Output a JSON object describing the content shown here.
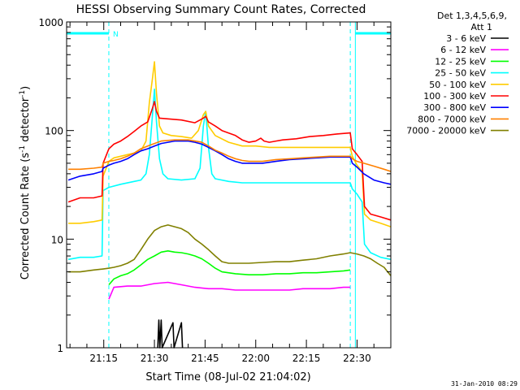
{
  "chart_data": {
    "type": "line",
    "title": "HESSI Observing Summary Count Rates, Corrected",
    "xlabel": "Start Time (08-Jul-02 21:04:02)",
    "ylabel": "Corrected Count Rate (s",
    "ylabel_sup1": "-1",
    "ylabel_mid": " detector",
    "ylabel_sup2": "-1",
    "ylabel_end": ")",
    "y_scale": "log",
    "ylim": [
      1,
      1000
    ],
    "xlim_minutes_after_21_00": [
      4.0,
      48.0
    ],
    "x_ticks": [
      {
        "label": "21:15",
        "m": 15
      },
      {
        "label": "21:30",
        "m": 30
      },
      {
        "label": "21:45",
        "m": 45
      },
      {
        "label": "22:00",
        "m": 60
      },
      {
        "label": "22:15",
        "m": 75
      },
      {
        "label": "22:30",
        "m": 90
      }
    ],
    "y_ticks": [
      {
        "label": "1",
        "v": 1
      },
      {
        "label": "10",
        "v": 10
      },
      {
        "label": "100",
        "v": 100
      },
      {
        "label": "1000",
        "v": 1000
      }
    ],
    "legend_placement": "right",
    "legend_header": [
      "Det 1,3,4,5,6,9,",
      "Att 1"
    ],
    "night_boundaries_minutes": [
      16.5,
      88.0
    ],
    "night_marker_label": "N",
    "footer_date": "31-Jan-2010 08:29",
    "series": [
      {
        "name": "3 - 6 keV",
        "color": "#000000",
        "points": [
          [
            31.0,
            1
          ],
          [
            31.3,
            1.8
          ],
          [
            31.6,
            1
          ],
          [
            32.0,
            1.8
          ],
          [
            32.3,
            1
          ],
          [
            35.5,
            1.7
          ],
          [
            35.8,
            1
          ],
          [
            38.0,
            1.7
          ],
          [
            38.3,
            1
          ]
        ]
      },
      {
        "name": "6 - 12 keV",
        "color": "#ff00ff",
        "points": [
          [
            16.5,
            2.8
          ],
          [
            18,
            3.6
          ],
          [
            22,
            3.7
          ],
          [
            26,
            3.7
          ],
          [
            30,
            3.9
          ],
          [
            34,
            4.0
          ],
          [
            38,
            3.8
          ],
          [
            42,
            3.6
          ],
          [
            46,
            3.5
          ],
          [
            50,
            3.5
          ],
          [
            54,
            3.4
          ],
          [
            58,
            3.4
          ],
          [
            62,
            3.4
          ],
          [
            66,
            3.4
          ],
          [
            70,
            3.4
          ],
          [
            74,
            3.5
          ],
          [
            78,
            3.5
          ],
          [
            82,
            3.5
          ],
          [
            86,
            3.6
          ],
          [
            88,
            3.6
          ]
        ]
      },
      {
        "name": "12 - 25 keV",
        "color": "#00ff00",
        "points": [
          [
            16.5,
            3.8
          ],
          [
            18,
            4.3
          ],
          [
            20,
            4.6
          ],
          [
            22,
            4.8
          ],
          [
            24,
            5.2
          ],
          [
            26,
            5.8
          ],
          [
            28,
            6.5
          ],
          [
            30,
            7.0
          ],
          [
            32,
            7.6
          ],
          [
            34,
            7.8
          ],
          [
            36,
            7.6
          ],
          [
            38,
            7.5
          ],
          [
            40,
            7.3
          ],
          [
            42,
            7.0
          ],
          [
            44,
            6.6
          ],
          [
            46,
            6.0
          ],
          [
            48,
            5.4
          ],
          [
            50,
            5.0
          ],
          [
            54,
            4.8
          ],
          [
            58,
            4.7
          ],
          [
            62,
            4.7
          ],
          [
            66,
            4.8
          ],
          [
            70,
            4.8
          ],
          [
            74,
            4.9
          ],
          [
            78,
            4.9
          ],
          [
            82,
            5.0
          ],
          [
            86,
            5.1
          ],
          [
            88,
            5.2
          ]
        ]
      },
      {
        "name": "25 - 50 keV",
        "color": "#00ffff",
        "points": [
          [
            4.5,
            6.5
          ],
          [
            8,
            6.8
          ],
          [
            12,
            6.8
          ],
          [
            14.5,
            7.0
          ],
          [
            14.8,
            28
          ],
          [
            16.5,
            30
          ],
          [
            20,
            32
          ],
          [
            24,
            34
          ],
          [
            26,
            35
          ],
          [
            27.5,
            40
          ],
          [
            28.5,
            60
          ],
          [
            29.5,
            150
          ],
          [
            30,
            240
          ],
          [
            30.6,
            120
          ],
          [
            31.5,
            55
          ],
          [
            32.5,
            40
          ],
          [
            34,
            36
          ],
          [
            38,
            35
          ],
          [
            42,
            36
          ],
          [
            43.5,
            45
          ],
          [
            44.5,
            110
          ],
          [
            45.2,
            150
          ],
          [
            46,
            70
          ],
          [
            47,
            40
          ],
          [
            48,
            36
          ],
          [
            52,
            34
          ],
          [
            56,
            33
          ],
          [
            60,
            33
          ],
          [
            64,
            33
          ],
          [
            68,
            33
          ],
          [
            72,
            33
          ],
          [
            76,
            33
          ],
          [
            80,
            33
          ],
          [
            84,
            33
          ],
          [
            88,
            33
          ],
          [
            88.6,
            29
          ],
          [
            90,
            26
          ],
          [
            91.5,
            22
          ],
          [
            92.2,
            9
          ],
          [
            94,
            7.5
          ],
          [
            97,
            6.8
          ],
          [
            100,
            6.5
          ]
        ]
      },
      {
        "name": "50 - 100 keV",
        "color": "#ffcc00",
        "points": [
          [
            4.5,
            14
          ],
          [
            8,
            14
          ],
          [
            12,
            14.5
          ],
          [
            14.5,
            15
          ],
          [
            14.8,
            38
          ],
          [
            16.5,
            52
          ],
          [
            18,
            56
          ],
          [
            20,
            58
          ],
          [
            22,
            60
          ],
          [
            24,
            62
          ],
          [
            26,
            65
          ],
          [
            27.5,
            80
          ],
          [
            28.5,
            180
          ],
          [
            29.4,
            300
          ],
          [
            30,
            430
          ],
          [
            30.6,
            220
          ],
          [
            31.5,
            110
          ],
          [
            32.5,
            95
          ],
          [
            35,
            90
          ],
          [
            38,
            88
          ],
          [
            41,
            85
          ],
          [
            43,
            100
          ],
          [
            44.5,
            140
          ],
          [
            45.2,
            150
          ],
          [
            46,
            110
          ],
          [
            48,
            90
          ],
          [
            52,
            78
          ],
          [
            56,
            72
          ],
          [
            60,
            72
          ],
          [
            64,
            70
          ],
          [
            68,
            70
          ],
          [
            72,
            70
          ],
          [
            76,
            70
          ],
          [
            80,
            70
          ],
          [
            84,
            70
          ],
          [
            88,
            70
          ],
          [
            88.6,
            58
          ],
          [
            90,
            48
          ],
          [
            91.5,
            42
          ],
          [
            92.2,
            17
          ],
          [
            94,
            15
          ],
          [
            97,
            14
          ],
          [
            100,
            13
          ]
        ]
      },
      {
        "name": "100 - 300 keV",
        "color": "#ff0000",
        "points": [
          [
            4.5,
            22
          ],
          [
            8,
            24
          ],
          [
            12,
            24
          ],
          [
            14.5,
            25
          ],
          [
            14.8,
            50
          ],
          [
            16.5,
            68
          ],
          [
            18,
            75
          ],
          [
            20,
            80
          ],
          [
            22,
            88
          ],
          [
            24,
            98
          ],
          [
            26,
            110
          ],
          [
            28,
            120
          ],
          [
            29.4,
            160
          ],
          [
            30,
            185
          ],
          [
            30.6,
            150
          ],
          [
            31.5,
            130
          ],
          [
            34,
            128
          ],
          [
            38,
            125
          ],
          [
            42,
            118
          ],
          [
            44.5,
            130
          ],
          [
            45.2,
            135
          ],
          [
            46,
            120
          ],
          [
            48,
            110
          ],
          [
            50,
            100
          ],
          [
            54,
            90
          ],
          [
            56,
            82
          ],
          [
            58,
            78
          ],
          [
            60,
            80
          ],
          [
            61.5,
            85
          ],
          [
            62.5,
            80
          ],
          [
            64,
            78
          ],
          [
            66,
            80
          ],
          [
            68,
            82
          ],
          [
            72,
            84
          ],
          [
            76,
            88
          ],
          [
            80,
            90
          ],
          [
            84,
            93
          ],
          [
            88,
            95
          ],
          [
            88.6,
            68
          ],
          [
            90,
            60
          ],
          [
            91.5,
            52
          ],
          [
            92.2,
            20
          ],
          [
            94,
            17
          ],
          [
            97,
            16
          ],
          [
            100,
            15
          ]
        ]
      },
      {
        "name": "300 - 800 keV",
        "color": "#0000ff",
        "points": [
          [
            4.5,
            35
          ],
          [
            8,
            38
          ],
          [
            12,
            40
          ],
          [
            14.5,
            42
          ],
          [
            14.8,
            45
          ],
          [
            16.5,
            48
          ],
          [
            18,
            50
          ],
          [
            20,
            52
          ],
          [
            22,
            55
          ],
          [
            24,
            60
          ],
          [
            26,
            65
          ],
          [
            28,
            68
          ],
          [
            30,
            72
          ],
          [
            32,
            76
          ],
          [
            36,
            80
          ],
          [
            40,
            80
          ],
          [
            42,
            78
          ],
          [
            44,
            75
          ],
          [
            46,
            70
          ],
          [
            48,
            65
          ],
          [
            50,
            60
          ],
          [
            52,
            55
          ],
          [
            54,
            52
          ],
          [
            56,
            50
          ],
          [
            58,
            50
          ],
          [
            62,
            50
          ],
          [
            66,
            52
          ],
          [
            70,
            54
          ],
          [
            74,
            55
          ],
          [
            78,
            56
          ],
          [
            82,
            57
          ],
          [
            86,
            57
          ],
          [
            88,
            57
          ],
          [
            88.6,
            50
          ],
          [
            90,
            46
          ],
          [
            92,
            40
          ],
          [
            95,
            35
          ],
          [
            98,
            33
          ],
          [
            100,
            32
          ]
        ]
      },
      {
        "name": "800 - 7000 keV",
        "color": "#ff8000",
        "points": [
          [
            4.5,
            44
          ],
          [
            8,
            44
          ],
          [
            12,
            45
          ],
          [
            14.5,
            46
          ],
          [
            14.8,
            50
          ],
          [
            16.5,
            52
          ],
          [
            18,
            53
          ],
          [
            20,
            55
          ],
          [
            22,
            58
          ],
          [
            24,
            62
          ],
          [
            26,
            68
          ],
          [
            28,
            72
          ],
          [
            30,
            76
          ],
          [
            32,
            80
          ],
          [
            36,
            82
          ],
          [
            40,
            82
          ],
          [
            42,
            80
          ],
          [
            44,
            78
          ],
          [
            46,
            72
          ],
          [
            48,
            66
          ],
          [
            50,
            62
          ],
          [
            52,
            58
          ],
          [
            54,
            55
          ],
          [
            56,
            53
          ],
          [
            58,
            52
          ],
          [
            62,
            52
          ],
          [
            66,
            54
          ],
          [
            70,
            55
          ],
          [
            74,
            56
          ],
          [
            78,
            57
          ],
          [
            82,
            58
          ],
          [
            86,
            58
          ],
          [
            88,
            58
          ],
          [
            88.6,
            55
          ],
          [
            90,
            52
          ],
          [
            92,
            50
          ],
          [
            95,
            47
          ],
          [
            98,
            44
          ],
          [
            100,
            42
          ]
        ]
      },
      {
        "name": "7000 - 20000 keV",
        "color": "#808000",
        "points": [
          [
            4.5,
            5.0
          ],
          [
            8,
            5.0
          ],
          [
            12,
            5.2
          ],
          [
            14.5,
            5.3
          ],
          [
            16.5,
            5.4
          ],
          [
            18,
            5.5
          ],
          [
            20,
            5.7
          ],
          [
            22,
            6.0
          ],
          [
            24,
            6.5
          ],
          [
            26,
            8.0
          ],
          [
            28,
            10
          ],
          [
            30,
            12
          ],
          [
            32,
            13
          ],
          [
            34,
            13.5
          ],
          [
            36,
            13
          ],
          [
            38,
            12.5
          ],
          [
            40,
            11.5
          ],
          [
            42,
            10
          ],
          [
            44,
            9.0
          ],
          [
            46,
            8.0
          ],
          [
            48,
            7.0
          ],
          [
            50,
            6.2
          ],
          [
            52,
            6.0
          ],
          [
            54,
            6.0
          ],
          [
            56,
            6.0
          ],
          [
            58,
            6.0
          ],
          [
            62,
            6.1
          ],
          [
            66,
            6.2
          ],
          [
            70,
            6.2
          ],
          [
            74,
            6.4
          ],
          [
            78,
            6.6
          ],
          [
            82,
            7.0
          ],
          [
            86,
            7.3
          ],
          [
            88,
            7.5
          ],
          [
            90,
            7.3
          ],
          [
            92,
            7.0
          ],
          [
            94,
            6.6
          ],
          [
            96,
            6.0
          ],
          [
            98,
            5.5
          ],
          [
            100,
            4.6
          ]
        ]
      }
    ]
  }
}
